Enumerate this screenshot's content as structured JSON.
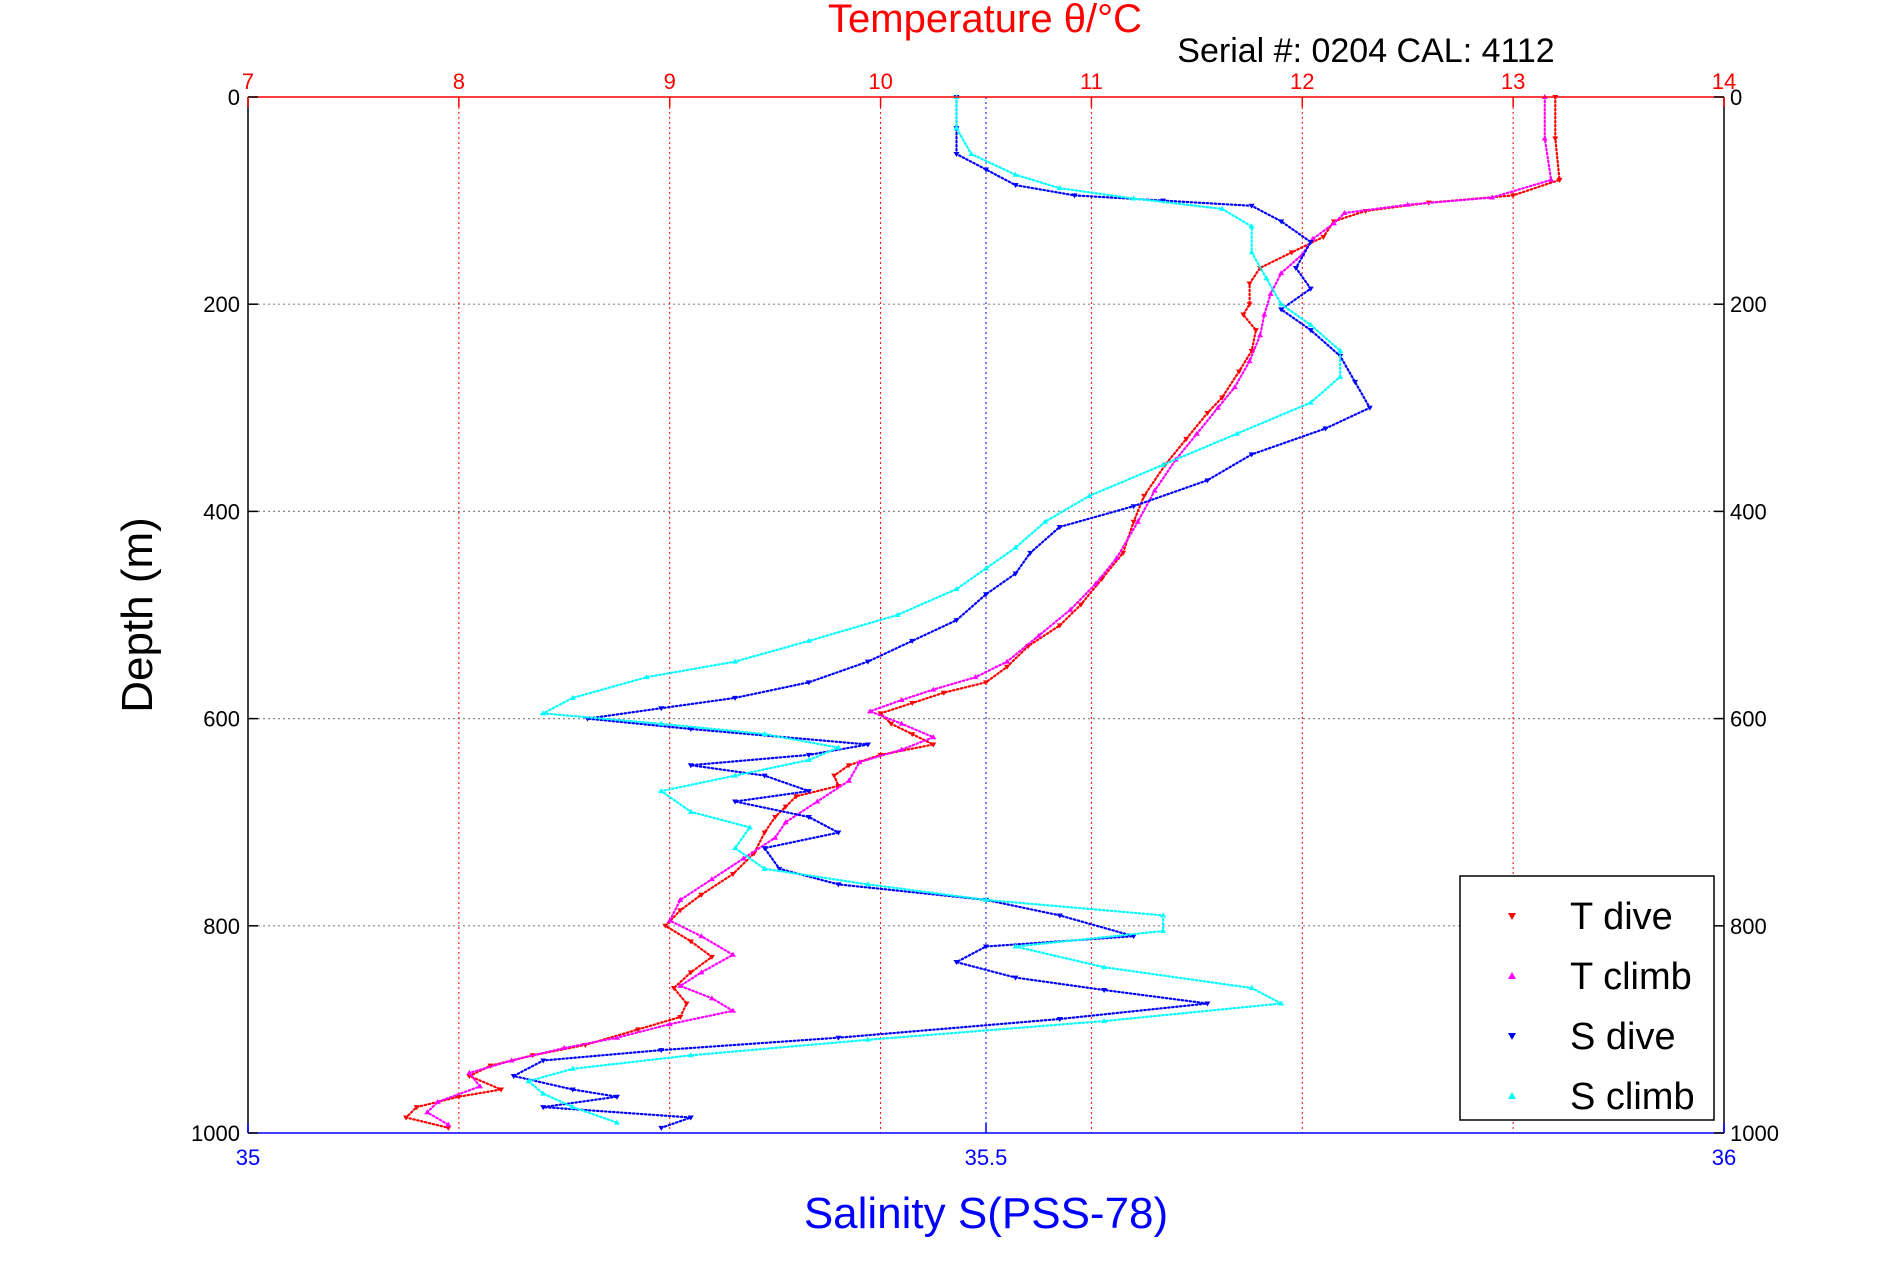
{
  "chart_data": {
    "type": "scatter",
    "title": "Temperature θ/°C",
    "subtitle": "Serial #: 0204  CAL: 4112",
    "ylabel": "Depth (m)",
    "xlabel_bottom": "Salinity S(PSS-78)",
    "xlabel_top": "Temperature θ/°C",
    "ylim": [
      1000,
      0
    ],
    "y_reversed": true,
    "x_bottom_lim": [
      35,
      36
    ],
    "x_top_lim": [
      7,
      14
    ],
    "y_ticks": [
      "0",
      "200",
      "400",
      "600",
      "800",
      "1000"
    ],
    "y_tick_values": [
      0,
      200,
      400,
      600,
      800,
      1000
    ],
    "x_bottom_ticks": [
      "35",
      "35.5",
      "36"
    ],
    "x_bottom_tick_values": [
      35,
      35.5,
      36
    ],
    "x_top_ticks": [
      "7",
      "8",
      "9",
      "10",
      "11",
      "12",
      "13",
      "14"
    ],
    "x_top_tick_values": [
      7,
      8,
      9,
      10,
      11,
      12,
      13,
      14
    ],
    "grid": true,
    "legend_position": "bottom-right",
    "colors": {
      "temperature_axis": "#ff0000",
      "salinity_axis": "#0000ff",
      "grid": "#888888",
      "text": "#000000"
    },
    "series": [
      {
        "name": "T dive",
        "axis": "top",
        "color": "#ff0000",
        "marker": "▾",
        "points": [
          [
            13.2,
            0
          ],
          [
            13.2,
            40
          ],
          [
            13.22,
            80
          ],
          [
            13.0,
            95
          ],
          [
            12.6,
            102
          ],
          [
            12.3,
            110
          ],
          [
            12.15,
            120
          ],
          [
            12.1,
            135
          ],
          [
            11.95,
            150
          ],
          [
            11.8,
            165
          ],
          [
            11.75,
            180
          ],
          [
            11.75,
            200
          ],
          [
            11.72,
            210
          ],
          [
            11.78,
            225
          ],
          [
            11.76,
            245
          ],
          [
            11.7,
            265
          ],
          [
            11.62,
            290
          ],
          [
            11.55,
            305
          ],
          [
            11.45,
            330
          ],
          [
            11.35,
            355
          ],
          [
            11.25,
            385
          ],
          [
            11.2,
            410
          ],
          [
            11.15,
            440
          ],
          [
            11.05,
            465
          ],
          [
            10.95,
            490
          ],
          [
            10.85,
            510
          ],
          [
            10.7,
            530
          ],
          [
            10.6,
            550
          ],
          [
            10.5,
            565
          ],
          [
            10.3,
            575
          ],
          [
            10.15,
            585
          ],
          [
            10.0,
            595
          ],
          [
            10.05,
            605
          ],
          [
            10.15,
            615
          ],
          [
            10.25,
            625
          ],
          [
            10.0,
            635
          ],
          [
            9.85,
            645
          ],
          [
            9.78,
            655
          ],
          [
            9.8,
            665
          ],
          [
            9.6,
            675
          ],
          [
            9.55,
            685
          ],
          [
            9.5,
            695
          ],
          [
            9.45,
            710
          ],
          [
            9.4,
            730
          ],
          [
            9.3,
            750
          ],
          [
            9.15,
            770
          ],
          [
            9.05,
            785
          ],
          [
            8.98,
            800
          ],
          [
            9.1,
            815
          ],
          [
            9.2,
            830
          ],
          [
            9.1,
            845
          ],
          [
            9.02,
            860
          ],
          [
            9.08,
            875
          ],
          [
            9.05,
            888
          ],
          [
            8.85,
            900
          ],
          [
            8.6,
            915
          ],
          [
            8.35,
            925
          ],
          [
            8.15,
            935
          ],
          [
            8.05,
            945
          ],
          [
            8.2,
            958
          ],
          [
            8.0,
            965
          ],
          [
            7.8,
            975
          ],
          [
            7.75,
            985
          ],
          [
            7.95,
            995
          ]
        ]
      },
      {
        "name": "T climb",
        "axis": "top",
        "color": "#ff00ff",
        "marker": "▴",
        "points": [
          [
            13.15,
            0
          ],
          [
            13.15,
            40
          ],
          [
            13.18,
            80
          ],
          [
            12.9,
            97
          ],
          [
            12.5,
            104
          ],
          [
            12.2,
            112
          ],
          [
            12.15,
            122
          ],
          [
            12.05,
            137
          ],
          [
            12.0,
            152
          ],
          [
            11.9,
            170
          ],
          [
            11.85,
            190
          ],
          [
            11.82,
            210
          ],
          [
            11.8,
            230
          ],
          [
            11.75,
            255
          ],
          [
            11.68,
            280
          ],
          [
            11.6,
            300
          ],
          [
            11.5,
            325
          ],
          [
            11.4,
            350
          ],
          [
            11.3,
            380
          ],
          [
            11.22,
            410
          ],
          [
            11.12,
            445
          ],
          [
            11.02,
            470
          ],
          [
            10.9,
            495
          ],
          [
            10.75,
            520
          ],
          [
            10.6,
            545
          ],
          [
            10.45,
            560
          ],
          [
            10.25,
            572
          ],
          [
            10.1,
            582
          ],
          [
            9.95,
            593
          ],
          [
            10.1,
            605
          ],
          [
            10.25,
            618
          ],
          [
            10.1,
            630
          ],
          [
            9.9,
            642
          ],
          [
            9.85,
            660
          ],
          [
            9.7,
            680
          ],
          [
            9.55,
            700
          ],
          [
            9.5,
            715
          ],
          [
            9.35,
            735
          ],
          [
            9.2,
            755
          ],
          [
            9.05,
            775
          ],
          [
            9.0,
            795
          ],
          [
            9.15,
            810
          ],
          [
            9.3,
            828
          ],
          [
            9.15,
            845
          ],
          [
            9.05,
            858
          ],
          [
            9.2,
            870
          ],
          [
            9.3,
            882
          ],
          [
            9.0,
            895
          ],
          [
            8.75,
            908
          ],
          [
            8.5,
            918
          ],
          [
            8.25,
            930
          ],
          [
            8.05,
            942
          ],
          [
            8.1,
            955
          ],
          [
            7.9,
            970
          ],
          [
            7.85,
            980
          ],
          [
            7.95,
            992
          ]
        ]
      },
      {
        "name": "S dive",
        "axis": "bottom",
        "color": "#0000ff",
        "marker": "▾",
        "points": [
          [
            35.48,
            0
          ],
          [
            35.48,
            30
          ],
          [
            35.48,
            55
          ],
          [
            35.5,
            70
          ],
          [
            35.52,
            85
          ],
          [
            35.56,
            95
          ],
          [
            35.62,
            100
          ],
          [
            35.68,
            105
          ],
          [
            35.7,
            120
          ],
          [
            35.72,
            140
          ],
          [
            35.71,
            165
          ],
          [
            35.72,
            185
          ],
          [
            35.7,
            205
          ],
          [
            35.72,
            225
          ],
          [
            35.74,
            250
          ],
          [
            35.75,
            275
          ],
          [
            35.76,
            300
          ],
          [
            35.73,
            320
          ],
          [
            35.68,
            345
          ],
          [
            35.65,
            370
          ],
          [
            35.6,
            395
          ],
          [
            35.55,
            415
          ],
          [
            35.53,
            440
          ],
          [
            35.52,
            460
          ],
          [
            35.5,
            480
          ],
          [
            35.48,
            505
          ],
          [
            35.45,
            525
          ],
          [
            35.42,
            545
          ],
          [
            35.38,
            565
          ],
          [
            35.33,
            580
          ],
          [
            35.28,
            590
          ],
          [
            35.23,
            600
          ],
          [
            35.3,
            610
          ],
          [
            35.42,
            625
          ],
          [
            35.38,
            635
          ],
          [
            35.3,
            645
          ],
          [
            35.35,
            655
          ],
          [
            35.38,
            670
          ],
          [
            35.33,
            680
          ],
          [
            35.38,
            695
          ],
          [
            35.4,
            710
          ],
          [
            35.35,
            725
          ],
          [
            35.36,
            745
          ],
          [
            35.4,
            760
          ],
          [
            35.5,
            775
          ],
          [
            35.55,
            790
          ],
          [
            35.6,
            810
          ],
          [
            35.5,
            820
          ],
          [
            35.48,
            835
          ],
          [
            35.52,
            850
          ],
          [
            35.58,
            862
          ],
          [
            35.65,
            875
          ],
          [
            35.55,
            890
          ],
          [
            35.4,
            908
          ],
          [
            35.28,
            920
          ],
          [
            35.2,
            930
          ],
          [
            35.18,
            945
          ],
          [
            35.22,
            958
          ],
          [
            35.25,
            965
          ],
          [
            35.2,
            975
          ],
          [
            35.3,
            985
          ],
          [
            35.28,
            995
          ]
        ]
      },
      {
        "name": "S climb",
        "axis": "bottom",
        "color": "#00ffff",
        "marker": "▴",
        "points": [
          [
            35.48,
            0
          ],
          [
            35.48,
            30
          ],
          [
            35.49,
            55
          ],
          [
            35.52,
            75
          ],
          [
            35.55,
            88
          ],
          [
            35.6,
            98
          ],
          [
            35.66,
            108
          ],
          [
            35.68,
            125
          ],
          [
            35.68,
            150
          ],
          [
            35.69,
            175
          ],
          [
            35.7,
            200
          ],
          [
            35.72,
            220
          ],
          [
            35.74,
            245
          ],
          [
            35.74,
            270
          ],
          [
            35.72,
            295
          ],
          [
            35.67,
            325
          ],
          [
            35.62,
            355
          ],
          [
            35.57,
            385
          ],
          [
            35.54,
            410
          ],
          [
            35.52,
            435
          ],
          [
            35.5,
            455
          ],
          [
            35.48,
            475
          ],
          [
            35.44,
            500
          ],
          [
            35.38,
            525
          ],
          [
            35.33,
            545
          ],
          [
            35.27,
            560
          ],
          [
            35.22,
            580
          ],
          [
            35.2,
            595
          ],
          [
            35.28,
            605
          ],
          [
            35.35,
            615
          ],
          [
            35.4,
            628
          ],
          [
            35.38,
            640
          ],
          [
            35.33,
            655
          ],
          [
            35.28,
            670
          ],
          [
            35.3,
            690
          ],
          [
            35.34,
            705
          ],
          [
            35.33,
            725
          ],
          [
            35.35,
            745
          ],
          [
            35.42,
            760
          ],
          [
            35.5,
            775
          ],
          [
            35.62,
            790
          ],
          [
            35.62,
            805
          ],
          [
            35.52,
            820
          ],
          [
            35.58,
            840
          ],
          [
            35.68,
            860
          ],
          [
            35.7,
            875
          ],
          [
            35.58,
            892
          ],
          [
            35.42,
            910
          ],
          [
            35.3,
            925
          ],
          [
            35.22,
            938
          ],
          [
            35.19,
            950
          ],
          [
            35.2,
            962
          ],
          [
            35.22,
            975
          ],
          [
            35.25,
            990
          ]
        ]
      }
    ]
  }
}
